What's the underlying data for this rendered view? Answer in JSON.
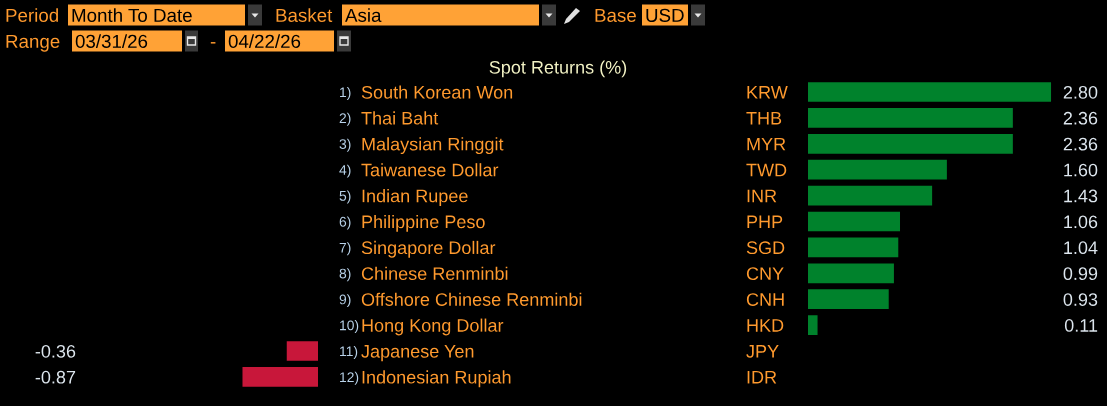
{
  "chart_data": [
    {
      "type": "bar",
      "orientation": "horizontal",
      "title": "Spot Returns (%)",
      "categories": [
        "1) South Korean Won",
        "2) Thai Baht",
        "3) Malaysian Ringgit",
        "4) Taiwanese Dollar",
        "5) Indian Rupee",
        "6) Philippine Peso",
        "7) Singapore Dollar",
        "8) Chinese Renminbi",
        "9) Offshore Chinese Renminbi",
        "10) Hong Kong Dollar",
        "11) Japanese Yen",
        "12) Indonesian Rupiah"
      ],
      "y2_categories": [
        "KRW",
        "THB",
        "MYR",
        "TWD",
        "INR",
        "PHP",
        "SGD",
        "CNY",
        "CNH",
        "HKD",
        "JPY",
        "IDR"
      ],
      "values": [
        2.8,
        2.36,
        2.36,
        1.6,
        1.43,
        1.06,
        1.04,
        0.99,
        0.93,
        0.11,
        null,
        null
      ],
      "value_labels": [
        "2.80",
        "2.36",
        "2.36",
        "1.60",
        "1.43",
        "1.06",
        "1.04",
        "0.99",
        "0.93",
        "0.11",
        null,
        null
      ],
      "color": "#00822c",
      "annotations": [
        "Period",
        "Month To Date",
        "Basket",
        "Asia",
        "Base",
        "USD",
        "Range",
        "03/31/26",
        "-",
        "04/22/26"
      ]
    },
    {
      "type": "bar",
      "orientation": "horizontal",
      "categories": [
        null,
        null,
        null,
        null,
        null,
        null,
        null,
        null,
        null,
        null,
        null,
        null
      ],
      "values": [
        null,
        null,
        null,
        null,
        null,
        null,
        null,
        null,
        null,
        null,
        -0.36,
        -0.87
      ],
      "value_labels": [
        null,
        null,
        null,
        null,
        null,
        null,
        null,
        null,
        null,
        null,
        "-0.36",
        "-0.87"
      ],
      "color": "#c8173a"
    }
  ]
}
